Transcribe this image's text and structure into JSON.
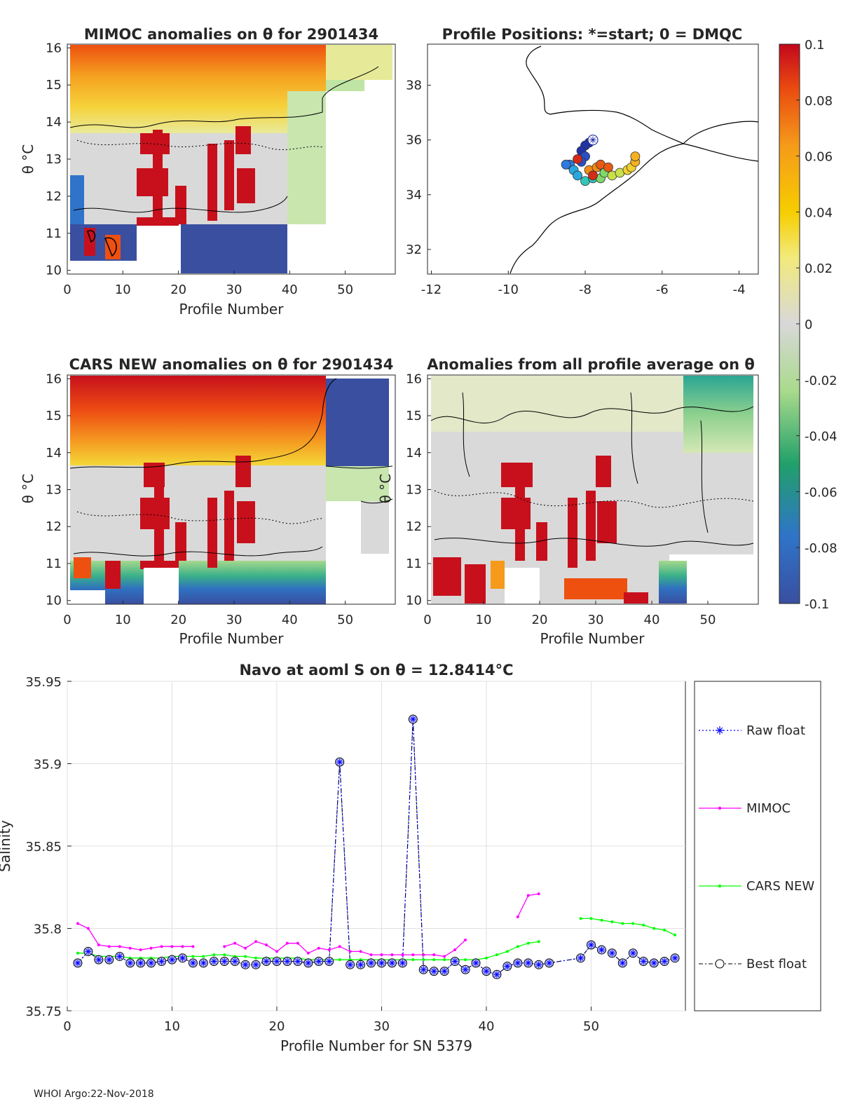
{
  "footer": "WHOI Argo:22-Nov-2018",
  "colors": {
    "raw_float": "#0000ff",
    "mimoc": "#ff00ff",
    "cars_new": "#00ff00",
    "best_float": "#000000",
    "marker_fill": "#b8bcff"
  },
  "colorbar": {
    "ticks": [
      "0.1",
      "0.08",
      "0.06",
      "0.04",
      "0.02",
      "0",
      "-0.02",
      "-0.04",
      "-0.06",
      "-0.08",
      "-0.1"
    ],
    "range": [
      -0.1,
      0.1
    ]
  },
  "chart_data": [
    {
      "type": "heatmap",
      "title": "MIMOC anomalies on θ  for 2901434",
      "xlabel": "Profile Number",
      "ylabel": "θ °C",
      "xticks": [
        "0",
        "10",
        "20",
        "30",
        "40",
        "50"
      ],
      "yticks": [
        "10",
        "11",
        "12",
        "13",
        "14",
        "15",
        "16"
      ],
      "xlim": [
        0,
        59
      ],
      "ylim": [
        9.9,
        16.1
      ],
      "color_scale": [
        -0.1,
        0.1
      ],
      "summary": "Warm anomaly (+0.04 to +0.1) above ~13.5 °C for profiles 1–46; near-zero band 11–13.5 °C; strong negative (-0.1) below ~11 °C; red vertical streaks at profiles ~14–22 and ~28–34 between 11 and 13.8 °C."
    },
    {
      "type": "scatter",
      "title": "Profile Positions: *=start; 0 = DMQC",
      "xticks": [
        "-12",
        "-10",
        "-8",
        "-6",
        "-4"
      ],
      "yticks": [
        "32",
        "34",
        "36",
        "38"
      ],
      "xlim": [
        -12.1,
        -3.5
      ],
      "ylim": [
        31.1,
        39.5
      ],
      "start": [
        -7.8,
        36.0
      ],
      "positions": [
        [
          -7.9,
          35.9
        ],
        [
          -8.0,
          35.8
        ],
        [
          -8.1,
          35.6
        ],
        [
          -8.0,
          35.4
        ],
        [
          -8.1,
          35.2
        ],
        [
          -8.4,
          35.1
        ],
        [
          -8.5,
          35.1
        ],
        [
          -8.3,
          34.9
        ],
        [
          -8.2,
          34.7
        ],
        [
          -8.0,
          34.5
        ],
        [
          -7.8,
          34.6
        ],
        [
          -7.6,
          34.6
        ],
        [
          -7.5,
          34.8
        ],
        [
          -7.3,
          34.7
        ],
        [
          -7.1,
          34.8
        ],
        [
          -6.9,
          34.9
        ],
        [
          -6.8,
          35.0
        ],
        [
          -6.7,
          35.2
        ],
        [
          -6.7,
          35.4
        ],
        [
          -7.9,
          34.9
        ],
        [
          -7.7,
          35.0
        ],
        [
          -7.6,
          35.1
        ],
        [
          -7.4,
          35.0
        ],
        [
          -7.8,
          34.7
        ],
        [
          -8.2,
          35.3
        ]
      ]
    },
    {
      "type": "heatmap",
      "title": "CARS NEW anomalies on θ for 2901434",
      "xlabel": "Profile Number",
      "ylabel": "θ °C",
      "xticks": [
        "0",
        "10",
        "20",
        "30",
        "40",
        "50"
      ],
      "yticks": [
        "10",
        "11",
        "12",
        "13",
        "14",
        "15",
        "16"
      ],
      "xlim": [
        0,
        59
      ],
      "ylim": [
        9.9,
        16.1
      ],
      "color_scale": [
        -0.1,
        0.1
      ],
      "summary": "Warm anomaly above ~13.7 °C for profiles 1–46; near zero 11–13.7 °C; negative below ~10.8 °C; profiles 47–56 strongly negative above 13.5 °C."
    },
    {
      "type": "heatmap",
      "title": "Anomalies from all profile average on θ",
      "xlabel": "Profile Number",
      "ylabel": "θ °C",
      "xticks": [
        "0",
        "10",
        "20",
        "30",
        "40",
        "50"
      ],
      "yticks": [
        "10",
        "11",
        "12",
        "13",
        "14",
        "15",
        "16"
      ],
      "xlim": [
        0,
        59
      ],
      "ylim": [
        9.9,
        16.1
      ],
      "color_scale": [
        -0.1,
        0.1
      ],
      "summary": "Mostly near-zero anomalies; red streaks at profiles ~14–22 and ~28–34; positive patches below 11 °C at profiles 1–12 and 25–38; negative teal region at profiles 47–58 above 14 °C."
    },
    {
      "type": "line",
      "title": "Navo at aoml S on θ = 12.8414°C",
      "xlabel": "Profile Number for SN 5379",
      "ylabel": "Salinity",
      "xticks": [
        "0",
        "10",
        "20",
        "30",
        "40",
        "50"
      ],
      "yticks": [
        "35.75",
        "35.8",
        "35.85",
        "35.9",
        "35.95"
      ],
      "xlim": [
        0,
        59
      ],
      "ylim": [
        35.75,
        35.95
      ],
      "grid": true,
      "legend": "outside-right",
      "series": [
        {
          "name": "Raw float",
          "x": [
            1,
            2,
            3,
            4,
            5,
            6,
            7,
            8,
            9,
            10,
            11,
            12,
            13,
            14,
            15,
            16,
            17,
            18,
            19,
            20,
            21,
            22,
            23,
            24,
            25,
            26,
            27,
            28,
            29,
            30,
            31,
            32,
            33,
            34,
            35,
            36,
            37,
            38,
            39,
            40,
            41,
            42,
            43,
            44,
            45,
            46,
            49,
            50,
            51,
            52,
            53,
            54,
            55,
            56,
            57,
            58
          ],
          "values": [
            35.779,
            35.786,
            35.781,
            35.781,
            35.783,
            35.779,
            35.779,
            35.779,
            35.78,
            35.781,
            35.782,
            35.779,
            35.779,
            35.78,
            35.78,
            35.78,
            35.778,
            35.778,
            35.78,
            35.78,
            35.78,
            35.78,
            35.779,
            35.78,
            35.78,
            35.901,
            35.778,
            35.778,
            35.779,
            35.779,
            35.779,
            35.779,
            35.927,
            35.775,
            35.774,
            35.774,
            35.78,
            35.775,
            35.779,
            35.774,
            35.772,
            35.777,
            35.779,
            35.779,
            35.778,
            35.779,
            35.782,
            35.79,
            35.787,
            35.785,
            35.779,
            35.785,
            35.78,
            35.779,
            35.78,
            35.782
          ]
        },
        {
          "name": "MIMOC",
          "x": [
            1,
            2,
            3,
            4,
            5,
            6,
            7,
            8,
            9,
            10,
            11,
            12,
            null,
            15,
            16,
            17,
            18,
            19,
            20,
            21,
            22,
            23,
            24,
            25,
            26,
            27,
            28,
            29,
            30,
            31,
            32,
            33,
            34,
            35,
            36,
            37,
            38,
            null,
            43,
            44,
            45
          ],
          "values": [
            35.803,
            35.8,
            35.79,
            35.789,
            35.789,
            35.788,
            35.787,
            35.788,
            35.789,
            35.789,
            35.789,
            35.789,
            null,
            35.789,
            35.791,
            35.788,
            35.792,
            35.79,
            35.786,
            35.791,
            35.791,
            35.785,
            35.788,
            35.787,
            35.789,
            35.786,
            35.786,
            35.784,
            35.784,
            35.784,
            35.784,
            35.784,
            35.784,
            35.784,
            35.783,
            35.787,
            35.793,
            null,
            35.807,
            35.82,
            35.821
          ]
        },
        {
          "name": "CARS NEW",
          "x": [
            1,
            2,
            3,
            4,
            5,
            6,
            7,
            8,
            9,
            10,
            11,
            12,
            13,
            14,
            15,
            16,
            17,
            18,
            19,
            20,
            21,
            22,
            23,
            24,
            25,
            26,
            27,
            28,
            29,
            30,
            31,
            32,
            33,
            34,
            35,
            36,
            37,
            38,
            39,
            40,
            41,
            42,
            43,
            44,
            45,
            null,
            49,
            50,
            51,
            52,
            53,
            54,
            55,
            56,
            57,
            58
          ],
          "values": [
            35.785,
            35.785,
            35.783,
            35.783,
            35.783,
            35.782,
            35.782,
            35.782,
            35.782,
            35.783,
            35.783,
            35.783,
            35.783,
            35.784,
            35.784,
            35.783,
            35.783,
            35.782,
            35.782,
            35.782,
            35.782,
            35.782,
            35.781,
            35.781,
            35.781,
            35.781,
            35.781,
            35.781,
            35.781,
            35.781,
            35.781,
            35.781,
            35.781,
            35.781,
            35.781,
            35.781,
            35.781,
            35.781,
            35.781,
            35.782,
            35.784,
            35.786,
            35.789,
            35.791,
            35.792,
            null,
            35.806,
            35.806,
            35.805,
            35.804,
            35.803,
            35.803,
            35.802,
            35.8,
            35.799,
            35.796
          ]
        },
        {
          "name": "Best float",
          "x": [
            1,
            2,
            3,
            4,
            5,
            6,
            7,
            8,
            9,
            10,
            11,
            12,
            13,
            14,
            15,
            16,
            17,
            18,
            19,
            20,
            21,
            22,
            23,
            24,
            25,
            26,
            27,
            28,
            29,
            30,
            31,
            32,
            33,
            34,
            35,
            36,
            37,
            38,
            39,
            40,
            41,
            42,
            43,
            44,
            45,
            46,
            49,
            50,
            51,
            52,
            53,
            54,
            55,
            56,
            57,
            58
          ],
          "values": [
            35.779,
            35.786,
            35.781,
            35.781,
            35.783,
            35.779,
            35.779,
            35.779,
            35.78,
            35.781,
            35.782,
            35.779,
            35.779,
            35.78,
            35.78,
            35.78,
            35.778,
            35.778,
            35.78,
            35.78,
            35.78,
            35.78,
            35.779,
            35.78,
            35.78,
            35.901,
            35.778,
            35.778,
            35.779,
            35.779,
            35.779,
            35.779,
            35.927,
            35.775,
            35.774,
            35.774,
            35.78,
            35.775,
            35.779,
            35.774,
            35.772,
            35.777,
            35.779,
            35.779,
            35.778,
            35.779,
            35.782,
            35.79,
            35.787,
            35.785,
            35.779,
            35.785,
            35.78,
            35.779,
            35.78,
            35.782
          ]
        }
      ]
    }
  ]
}
